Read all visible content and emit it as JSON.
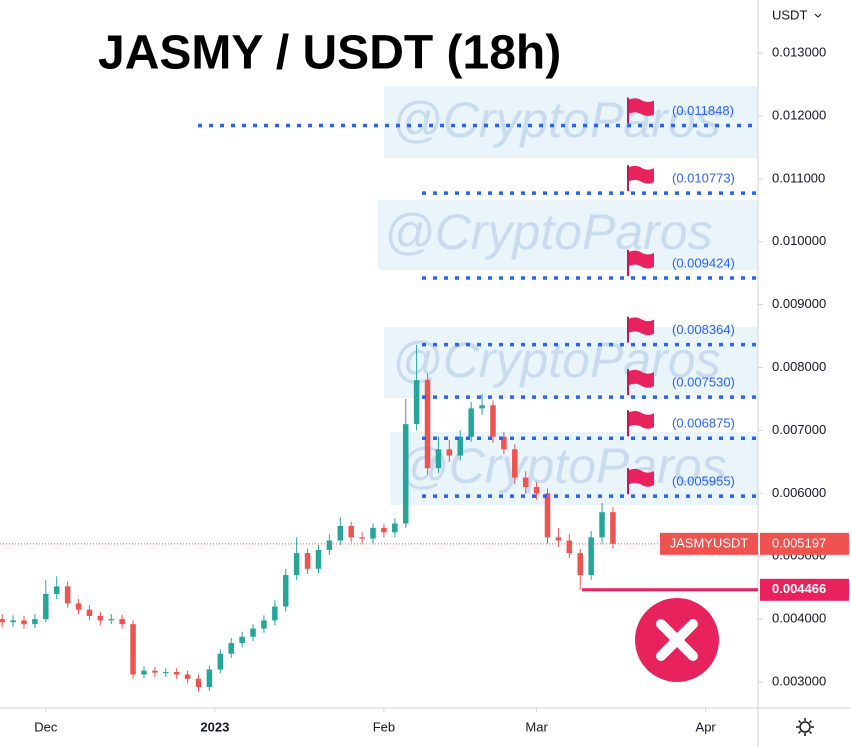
{
  "chart_data": {
    "type": "candlestick",
    "title": "JASMY / USDT (18h)",
    "watermark": "@CryptoParos",
    "currency": "USDT",
    "symbol": "JASMYUSDT",
    "last_price": {
      "value": 0.005197,
      "label": "0.005197"
    },
    "low_marker": {
      "value": 0.004466,
      "label": "0.004466"
    },
    "levels": [
      {
        "value": 0.011848,
        "label": "(0.011848)"
      },
      {
        "value": 0.010773,
        "label": "(0.010773)"
      },
      {
        "value": 0.009424,
        "label": "(0.009424)"
      },
      {
        "value": 0.008364,
        "label": "(0.008364)"
      },
      {
        "value": 0.00753,
        "label": "(0.007530)"
      },
      {
        "value": 0.006875,
        "label": "(0.006875)"
      },
      {
        "value": 0.005955,
        "label": "(0.005955)"
      }
    ],
    "up_color": "#26a69a",
    "down_color": "#ef5350",
    "level_color": "#2962ff",
    "x": [
      -8,
      -6,
      -4,
      -2,
      0,
      2,
      4,
      6,
      8,
      10,
      12,
      14,
      16,
      18,
      20,
      22,
      24,
      26,
      28,
      30,
      32,
      34,
      36,
      38,
      40,
      42,
      44,
      46,
      48,
      50,
      52,
      54,
      56,
      58,
      60,
      62,
      64,
      66,
      68,
      70,
      72,
      74,
      76,
      78,
      80,
      82,
      84,
      86,
      88,
      90,
      92,
      94,
      96,
      98,
      100,
      102,
      104
    ],
    "open": [
      0.004,
      0.00395,
      0.00398,
      0.00392,
      0.004,
      0.0044,
      0.00452,
      0.00425,
      0.00415,
      0.00405,
      0.00398,
      0.004,
      0.00392,
      0.00312,
      0.00318,
      0.00315,
      0.00316,
      0.00312,
      0.00305,
      0.00292,
      0.0032,
      0.00345,
      0.00362,
      0.00372,
      0.00385,
      0.00398,
      0.0042,
      0.0047,
      0.00505,
      0.0048,
      0.0051,
      0.00525,
      0.00548,
      0.0053,
      0.00528,
      0.00545,
      0.00538,
      0.00552,
      0.0071,
      0.0078,
      0.0064,
      0.0067,
      0.0066,
      0.0069,
      0.00735,
      0.0074,
      0.0069,
      0.0067,
      0.00625,
      0.0061,
      0.006,
      0.0053,
      0.00525,
      0.00505,
      0.0047,
      0.0053,
      0.0057
    ],
    "high": [
      0.00408,
      0.00406,
      0.00405,
      0.00408,
      0.00462,
      0.00468,
      0.0046,
      0.00432,
      0.00422,
      0.00412,
      0.00408,
      0.00407,
      0.00398,
      0.00325,
      0.00324,
      0.00322,
      0.00322,
      0.00318,
      0.00312,
      0.00326,
      0.00352,
      0.0037,
      0.0038,
      0.00392,
      0.00406,
      0.0043,
      0.0048,
      0.0053,
      0.00512,
      0.00518,
      0.00535,
      0.00562,
      0.00555,
      0.00538,
      0.00552,
      0.00552,
      0.0056,
      0.0075,
      0.00836,
      0.0079,
      0.0069,
      0.00685,
      0.007,
      0.00745,
      0.00758,
      0.00748,
      0.00698,
      0.00678,
      0.00635,
      0.00618,
      0.00608,
      0.00545,
      0.00535,
      0.00512,
      0.0054,
      0.00585,
      0.00578
    ],
    "low": [
      0.00387,
      0.00388,
      0.00385,
      0.00386,
      0.00395,
      0.00432,
      0.00418,
      0.00408,
      0.00398,
      0.0039,
      0.00392,
      0.00385,
      0.00305,
      0.00306,
      0.00308,
      0.00308,
      0.00305,
      0.00298,
      0.00285,
      0.00286,
      0.00314,
      0.00338,
      0.00355,
      0.00365,
      0.00378,
      0.0039,
      0.00412,
      0.00462,
      0.00472,
      0.00473,
      0.00502,
      0.00518,
      0.00522,
      0.0052,
      0.0052,
      0.0053,
      0.0053,
      0.00545,
      0.007,
      0.0063,
      0.00632,
      0.0065,
      0.00652,
      0.00682,
      0.00725,
      0.0068,
      0.00662,
      0.00615,
      0.006,
      0.0059,
      0.0052,
      0.00515,
      0.00497,
      0.004466,
      0.00462,
      0.0052,
      0.00512
    ],
    "close": [
      0.00395,
      0.00398,
      0.00392,
      0.004,
      0.0044,
      0.00452,
      0.00425,
      0.00415,
      0.00405,
      0.00398,
      0.004,
      0.00392,
      0.00312,
      0.00318,
      0.00315,
      0.00316,
      0.00312,
      0.00305,
      0.00292,
      0.0032,
      0.00345,
      0.00362,
      0.00372,
      0.00385,
      0.00398,
      0.0042,
      0.0047,
      0.00505,
      0.0048,
      0.0051,
      0.00525,
      0.00548,
      0.0053,
      0.00528,
      0.00545,
      0.00538,
      0.00552,
      0.0071,
      0.0078,
      0.0064,
      0.0067,
      0.0066,
      0.0069,
      0.00735,
      0.0074,
      0.0069,
      0.0067,
      0.00625,
      0.0061,
      0.006,
      0.0053,
      0.00525,
      0.00505,
      0.0047,
      0.0053,
      0.0057,
      0.005197
    ],
    "xlim": [
      -8.4,
      130.6
    ],
    "ylim": [
      0.002587,
      0.013843
    ],
    "xticks": [
      {
        "value": 0,
        "label": "Dec"
      },
      {
        "value": 31,
        "label": "2023"
      },
      {
        "value": 62,
        "label": "Feb"
      },
      {
        "value": 90,
        "label": "Mar"
      },
      {
        "value": 121,
        "label": "Apr"
      }
    ],
    "yticks": [
      {
        "value": 0.003,
        "label": "0.003000"
      },
      {
        "value": 0.004,
        "label": "0.004000"
      },
      {
        "value": 0.005,
        "label": "0.005000"
      },
      {
        "value": 0.006,
        "label": "0.006000"
      },
      {
        "value": 0.007,
        "label": "0.007000"
      },
      {
        "value": 0.008,
        "label": "0.008000"
      },
      {
        "value": 0.009,
        "label": "0.009000"
      },
      {
        "value": 0.01,
        "label": "0.010000"
      },
      {
        "value": 0.011,
        "label": "0.011000"
      },
      {
        "value": 0.012,
        "label": "0.012000"
      },
      {
        "value": 0.013,
        "label": "0.013000"
      }
    ]
  }
}
